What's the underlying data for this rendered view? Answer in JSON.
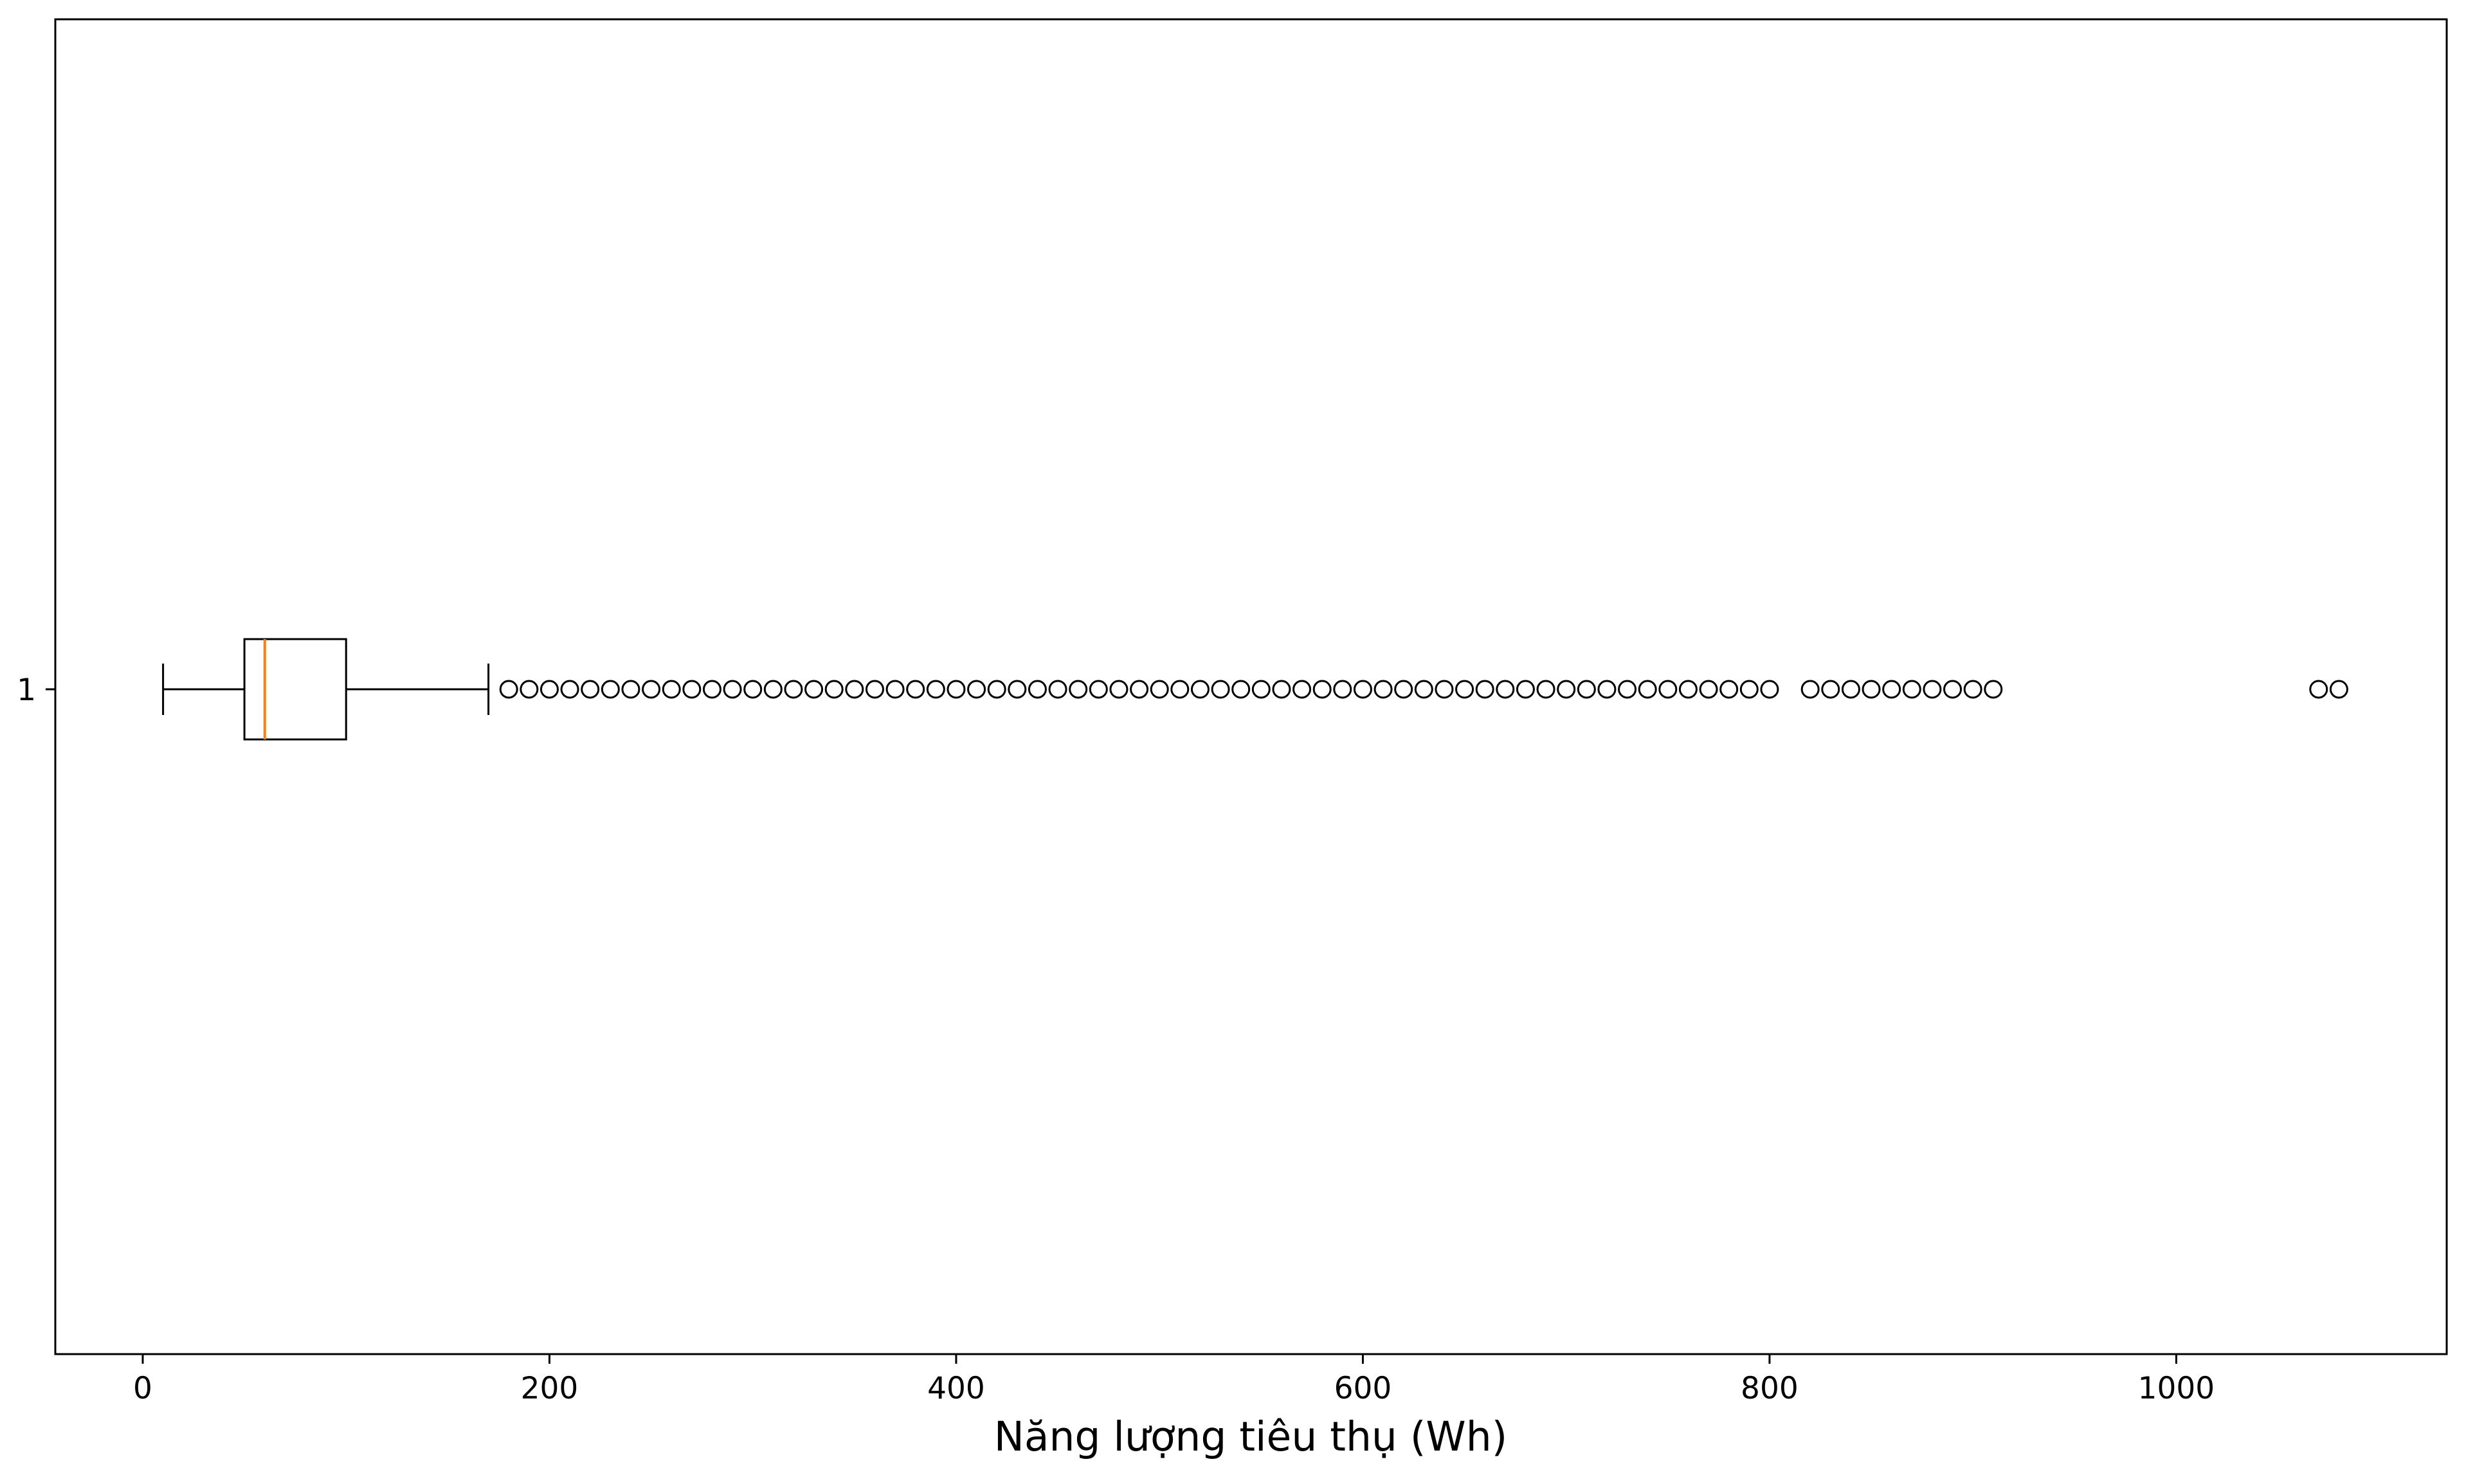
{
  "chart_data": {
    "type": "boxplot",
    "orientation": "horizontal",
    "title": "",
    "xlabel": "Năng lượng tiêu thụ (Wh)",
    "ylabel": "",
    "xlim": [
      -43,
      1133
    ],
    "xticks": [
      0,
      200,
      400,
      600,
      800,
      1000
    ],
    "xtick_labels": [
      "0",
      "200",
      "400",
      "600",
      "800",
      "1000"
    ],
    "ytick_labels": [
      "1"
    ],
    "grid": false,
    "series": [
      {
        "position": 1,
        "whisker_low": 10,
        "q1": 50,
        "median": 60,
        "q3": 100,
        "whisker_high": 170,
        "outliers": [
          180,
          190,
          200,
          210,
          220,
          230,
          240,
          250,
          260,
          270,
          280,
          290,
          300,
          310,
          320,
          330,
          340,
          350,
          360,
          370,
          380,
          390,
          400,
          410,
          420,
          430,
          440,
          450,
          460,
          470,
          480,
          490,
          500,
          510,
          520,
          530,
          540,
          550,
          560,
          570,
          580,
          590,
          600,
          610,
          620,
          630,
          640,
          650,
          660,
          670,
          680,
          690,
          700,
          710,
          720,
          730,
          740,
          750,
          760,
          770,
          780,
          790,
          800,
          820,
          830,
          840,
          850,
          860,
          870,
          880,
          890,
          900,
          910,
          1070,
          1080
        ]
      }
    ],
    "colors": {
      "box": "#000000",
      "median": "#ff7f0e",
      "whisker": "#000000",
      "outlier_edge": "#000000",
      "axes": "#000000"
    }
  }
}
